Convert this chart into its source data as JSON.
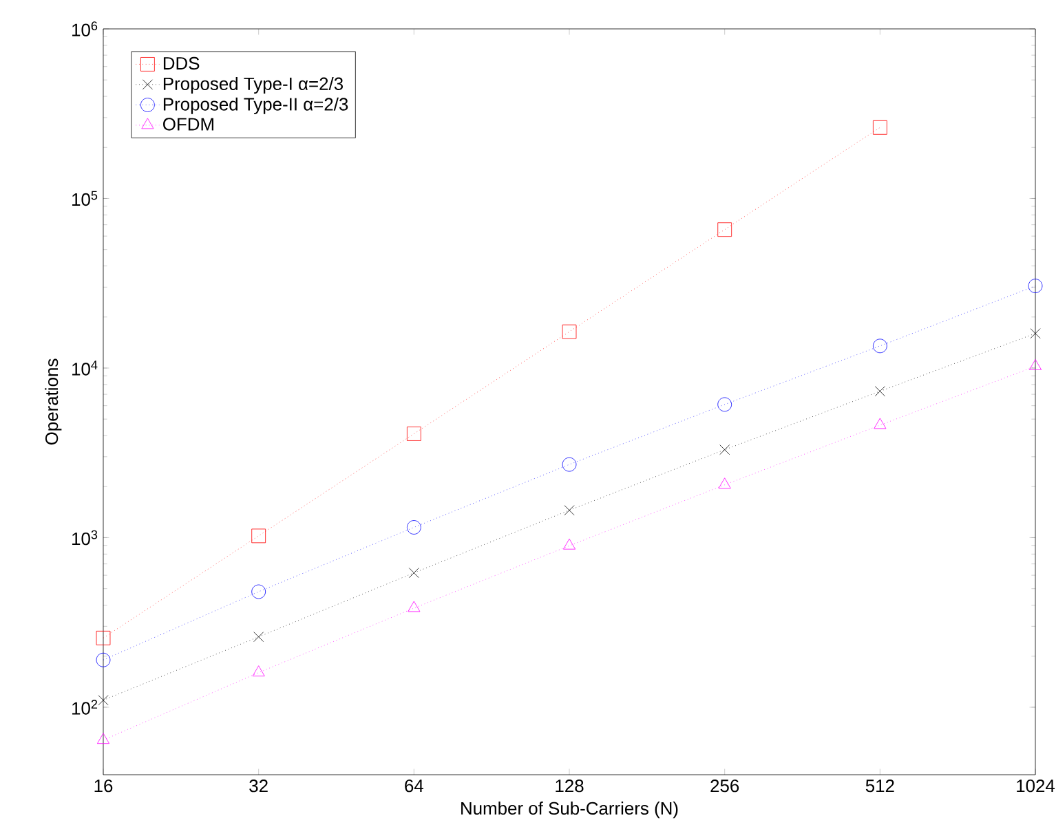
{
  "chart_data": {
    "type": "line",
    "xlabel": "Number of Sub-Carriers (N)",
    "ylabel": "Operations",
    "x": [
      16,
      32,
      64,
      128,
      256,
      512,
      1024
    ],
    "xlim": [
      16,
      1024
    ],
    "xticks": [
      16,
      32,
      64,
      128,
      256,
      512,
      1024
    ],
    "ylim": [
      40,
      1000000
    ],
    "yticks": [
      {
        "value": 100,
        "label": "10$^{2}$"
      },
      {
        "value": 1000,
        "label": "10$^{3}$"
      },
      {
        "value": 10000,
        "label": "10$^{4}$"
      },
      {
        "value": 100000,
        "label": "10$^{5}$"
      },
      {
        "value": 1000000,
        "label": "10$^{6}$"
      }
    ],
    "log": "xy",
    "legend": "top left",
    "line_style": "dotted",
    "series": [
      {
        "name": "DDS",
        "color": "#ff0000",
        "marker": "square",
        "values": [
          256,
          1024,
          4096,
          16384,
          65536,
          262144,
          null
        ]
      },
      {
        "name": "Proposed Type-I α=2/3",
        "color": "#000000",
        "marker": "cross",
        "values": [
          110,
          260,
          620,
          1450,
          3300,
          7300,
          16000
        ]
      },
      {
        "name": "Proposed Type-II α=2/3",
        "color": "#0000ff",
        "marker": "circle",
        "values": [
          190,
          480,
          1150,
          2700,
          6100,
          13500,
          30500
        ]
      },
      {
        "name": "OFDM",
        "color": "#ff00ff",
        "marker": "triangle",
        "values": [
          64,
          160,
          384,
          896,
          2048,
          4608,
          10240
        ]
      }
    ]
  }
}
